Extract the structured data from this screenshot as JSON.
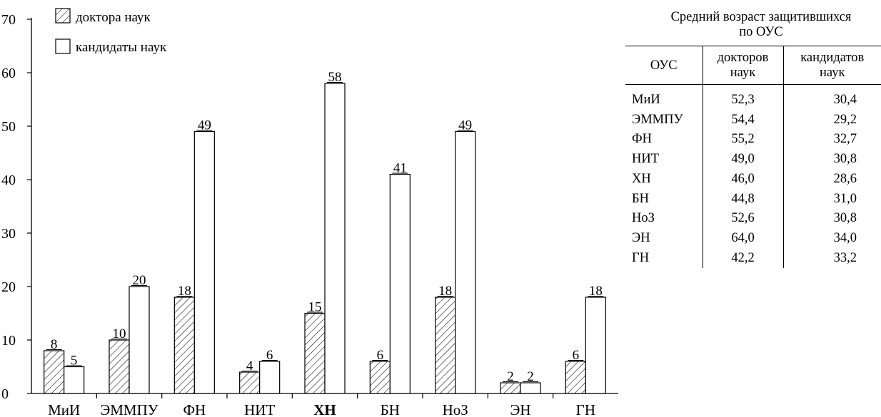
{
  "chart_data": {
    "type": "bar",
    "categories": [
      "МиИ",
      "ЭММПУ",
      "ФН",
      "НИТ",
      "ХН",
      "БН",
      "НоЗ",
      "ЭН",
      "ГН"
    ],
    "series": [
      {
        "name": "доктора наук",
        "values": [
          8,
          10,
          18,
          4,
          15,
          6,
          18,
          2,
          6
        ],
        "pattern": "hatched"
      },
      {
        "name": "кандидаты наук",
        "values": [
          5,
          20,
          49,
          6,
          58,
          41,
          49,
          2,
          18
        ],
        "pattern": "empty"
      }
    ],
    "yticks": [
      0,
      10,
      20,
      30,
      40,
      50,
      60,
      70
    ],
    "ylim": [
      0,
      70
    ],
    "legend_position": "top-left",
    "bold_category": "ХН",
    "title": "",
    "xlabel": "",
    "ylabel": "",
    "grid": false
  },
  "side_table": {
    "title_line1": "Средний возраст защитившихся",
    "title_line2": "по ОУС",
    "headers": {
      "col1": "ОУС",
      "col2_line1": "докторов",
      "col2_line2": "наук",
      "col3_line1": "кандидатов",
      "col3_line2": "наук"
    },
    "rows": [
      {
        "name": "МиИ",
        "doc": "52,3",
        "cand": "30,4"
      },
      {
        "name": "ЭММПУ",
        "doc": "54,4",
        "cand": "29,2"
      },
      {
        "name": "ФН",
        "doc": "55,2",
        "cand": "32,7"
      },
      {
        "name": "НИТ",
        "doc": "49,0",
        "cand": "30,8"
      },
      {
        "name": "ХН",
        "doc": "46,0",
        "cand": "28,6"
      },
      {
        "name": "БН",
        "doc": "44,8",
        "cand": "31,0"
      },
      {
        "name": "НоЗ",
        "doc": "52,6",
        "cand": "30,8"
      },
      {
        "name": "ЭН",
        "doc": "64,0",
        "cand": "34,0"
      },
      {
        "name": "ГН",
        "doc": "42,2",
        "cand": "33,2"
      }
    ]
  }
}
